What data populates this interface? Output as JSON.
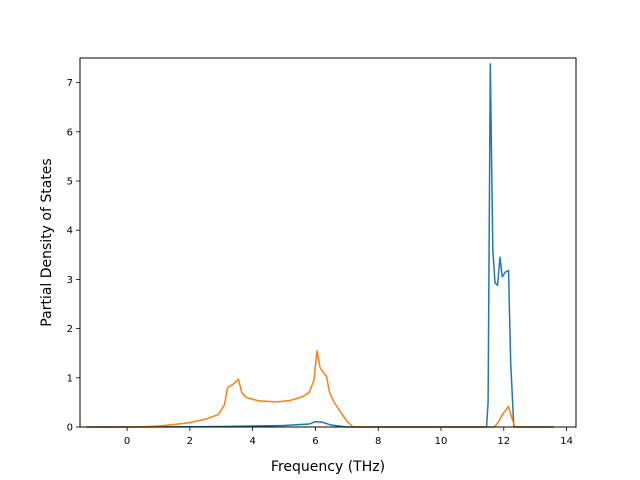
{
  "chart_data": {
    "type": "line",
    "title": "",
    "xlabel": "Frequency (THz)",
    "ylabel": "Partial Density of States",
    "xlim": [
      -1.5,
      14.3
    ],
    "ylim": [
      0,
      7.5
    ],
    "xticks": [
      0,
      2,
      4,
      6,
      8,
      10,
      12,
      14
    ],
    "yticks": [
      0,
      1,
      2,
      3,
      4,
      5,
      6,
      7
    ],
    "grid": false,
    "legend": "none",
    "series": [
      {
        "color": "#1f77b4",
        "points": [
          [
            -1.3,
            0
          ],
          [
            0.0,
            0
          ],
          [
            2.0,
            0.005
          ],
          [
            3.0,
            0.01
          ],
          [
            4.0,
            0.02
          ],
          [
            5.0,
            0.03
          ],
          [
            5.8,
            0.06
          ],
          [
            6.0,
            0.11
          ],
          [
            6.2,
            0.1
          ],
          [
            6.5,
            0.04
          ],
          [
            7.0,
            0.0
          ],
          [
            11.45,
            0.0
          ],
          [
            11.5,
            0.5
          ],
          [
            11.57,
            7.38
          ],
          [
            11.65,
            3.6
          ],
          [
            11.72,
            2.93
          ],
          [
            11.8,
            2.88
          ],
          [
            11.88,
            3.45
          ],
          [
            11.95,
            3.05
          ],
          [
            12.05,
            3.15
          ],
          [
            12.15,
            3.18
          ],
          [
            12.22,
            1.3
          ],
          [
            12.32,
            0.0
          ],
          [
            13.6,
            0.0
          ]
        ]
      },
      {
        "color": "#ff7f0e",
        "points": [
          [
            -1.3,
            0
          ],
          [
            0.0,
            0
          ],
          [
            0.5,
            0.005
          ],
          [
            1.0,
            0.02
          ],
          [
            1.5,
            0.05
          ],
          [
            2.0,
            0.09
          ],
          [
            2.5,
            0.16
          ],
          [
            2.9,
            0.25
          ],
          [
            3.1,
            0.45
          ],
          [
            3.2,
            0.8
          ],
          [
            3.4,
            0.88
          ],
          [
            3.55,
            0.97
          ],
          [
            3.65,
            0.7
          ],
          [
            3.8,
            0.6
          ],
          [
            4.2,
            0.53
          ],
          [
            4.8,
            0.51
          ],
          [
            5.2,
            0.54
          ],
          [
            5.6,
            0.62
          ],
          [
            5.8,
            0.7
          ],
          [
            5.95,
            0.95
          ],
          [
            6.05,
            1.55
          ],
          [
            6.15,
            1.2
          ],
          [
            6.35,
            1.03
          ],
          [
            6.45,
            0.7
          ],
          [
            6.6,
            0.5
          ],
          [
            6.8,
            0.3
          ],
          [
            7.0,
            0.12
          ],
          [
            7.2,
            0.0
          ],
          [
            11.7,
            0.0
          ],
          [
            11.85,
            0.12
          ],
          [
            11.95,
            0.25
          ],
          [
            12.05,
            0.33
          ],
          [
            12.15,
            0.42
          ],
          [
            12.25,
            0.2
          ],
          [
            12.35,
            0.0
          ],
          [
            13.6,
            0.0
          ]
        ]
      }
    ]
  }
}
